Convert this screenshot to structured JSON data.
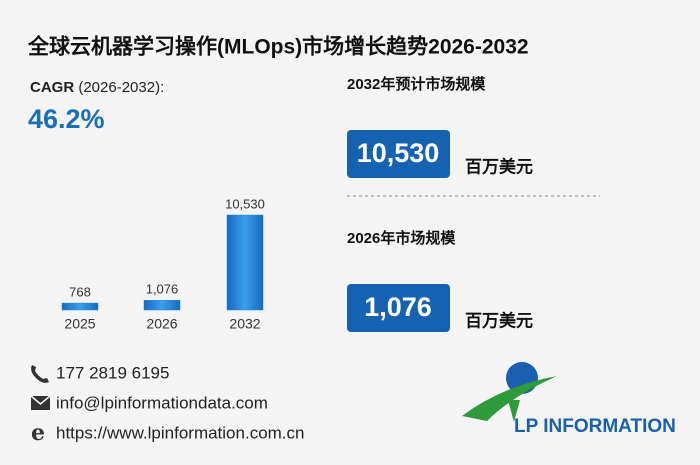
{
  "chart_data": {
    "type": "bar",
    "title": "全球云机器学习操作(MLOps)市场增长趋势2026-2032",
    "categories": [
      "2025",
      "2026",
      "2032"
    ],
    "values": [
      768,
      1076,
      10530
    ],
    "value_labels": [
      "768",
      "1,076",
      "10,530"
    ],
    "color": "#1e86d6"
  },
  "cagr": {
    "label": "CAGR",
    "period": "(2026-2032):",
    "value": "46.2%"
  },
  "forecast": {
    "label": "2032年预计市场规模",
    "value": "10,530",
    "unit": "百万美元"
  },
  "current": {
    "label": "2026年市场规模",
    "value": "1,076",
    "unit": "百万美元"
  },
  "contacts": {
    "phone": "177 2819 6195",
    "email": "info@lpinformationdata.com",
    "website": "https://www.lpinformation.com.cn"
  },
  "logo": "LP INFORMATION"
}
